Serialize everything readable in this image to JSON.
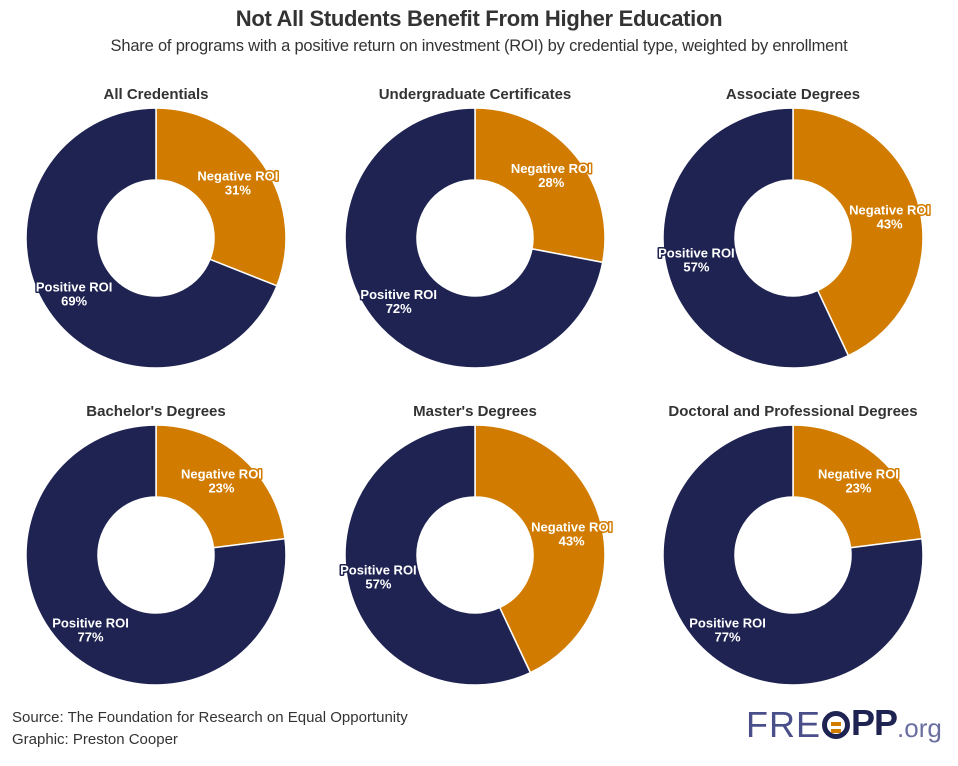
{
  "header": {
    "title": "Not All Students Benefit From Higher Education",
    "subtitle": "Share of programs with a positive return on investment (ROI) by credential type, weighted by enrollment"
  },
  "colors": {
    "positive": "#1f2352",
    "negative": "#d17c00",
    "text": "#333333"
  },
  "chart_data": [
    {
      "type": "pie",
      "title": "All Credentials",
      "categories": [
        "Negative ROI",
        "Positive ROI"
      ],
      "values": [
        31,
        69
      ],
      "labels": [
        "31%",
        "69%"
      ]
    },
    {
      "type": "pie",
      "title": "Undergraduate Certificates",
      "categories": [
        "Negative ROI",
        "Positive ROI"
      ],
      "values": [
        28,
        72
      ],
      "labels": [
        "28%",
        "72%"
      ]
    },
    {
      "type": "pie",
      "title": "Associate Degrees",
      "categories": [
        "Negative ROI",
        "Positive ROI"
      ],
      "values": [
        43,
        57
      ],
      "labels": [
        "43%",
        "57%"
      ]
    },
    {
      "type": "pie",
      "title": "Bachelor's Degrees",
      "categories": [
        "Negative ROI",
        "Positive ROI"
      ],
      "values": [
        23,
        77
      ],
      "labels": [
        "23%",
        "77%"
      ]
    },
    {
      "type": "pie",
      "title": "Master's Degrees",
      "categories": [
        "Negative ROI",
        "Positive ROI"
      ],
      "values": [
        43,
        57
      ],
      "labels": [
        "43%",
        "57%"
      ]
    },
    {
      "type": "pie",
      "title": "Doctoral and Professional Degrees",
      "categories": [
        "Negative ROI",
        "Positive ROI"
      ],
      "values": [
        23,
        77
      ],
      "labels": [
        "23%",
        "77%"
      ]
    }
  ],
  "footer": {
    "source": "Source: The Foundation for Research on Equal Opportunity",
    "graphic": "Graphic: Preston Cooper"
  },
  "logo": {
    "part1": "FRE",
    "part2": "PP",
    "tld": ".org"
  }
}
